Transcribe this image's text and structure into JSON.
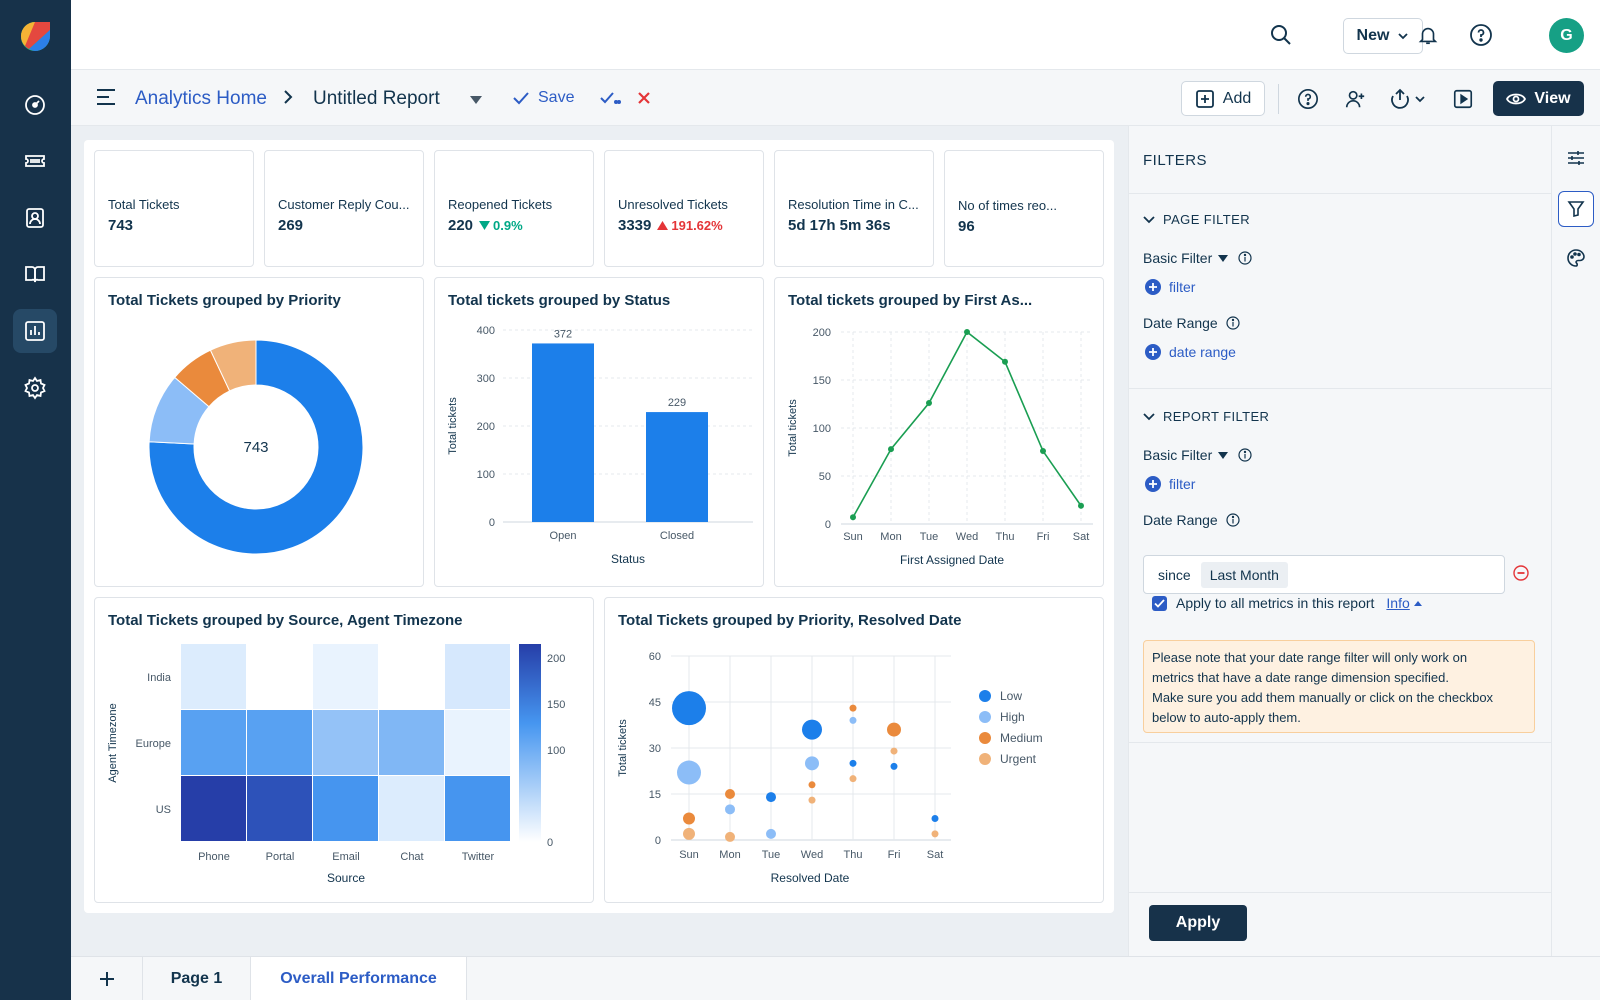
{
  "topbar": {
    "new_label": "New",
    "avatar_initial": "G"
  },
  "breadcrumb": {
    "home": "Analytics Home",
    "title": "Untitled Report"
  },
  "toolbar": {
    "save_label": "Save",
    "add_label": "Add",
    "view_label": "View"
  },
  "metrics": [
    {
      "label": "Total Tickets",
      "value": "743",
      "delta": "",
      "trend": ""
    },
    {
      "label": "Customer Reply Cou...",
      "value": "269",
      "delta": "",
      "trend": ""
    },
    {
      "label": "Reopened Tickets",
      "value": "220",
      "delta": "0.9%",
      "trend": "down"
    },
    {
      "label": "Unresolved Tickets",
      "value": "3339",
      "delta": "191.62%",
      "trend": "up"
    },
    {
      "label": "Resolution Time in C...",
      "value": "5d 17h 5m 36s",
      "delta": "",
      "trend": ""
    },
    {
      "label": "No of times reo...",
      "value": "96",
      "delta": "",
      "trend": ""
    }
  ],
  "charts": {
    "priority": {
      "title": "Total Tickets grouped by Priority"
    },
    "status": {
      "title": "Total tickets grouped by Status"
    },
    "first_assigned": {
      "title": "Total tickets grouped by First As..."
    },
    "source": {
      "title": "Total Tickets grouped by Source, Agent Timezone"
    },
    "resolved": {
      "title": "Total Tickets grouped by Priority, Resolved Date"
    }
  },
  "chart_data": [
    {
      "type": "pie",
      "title": "Total Tickets grouped by Priority",
      "center_label": "743",
      "categories": [
        "Low",
        "High",
        "Medium",
        "Urgent"
      ],
      "values": [
        563,
        78,
        50,
        52
      ],
      "colors": [
        "#1c7fea",
        "#8cbdf7",
        "#ea8a3c",
        "#f0b279"
      ]
    },
    {
      "type": "bar",
      "title": "Total tickets grouped by Status",
      "categories": [
        "Open",
        "Closed"
      ],
      "values": [
        372,
        229
      ],
      "xlabel": "Status",
      "ylabel": "Total tickets",
      "ylim": [
        0,
        400
      ],
      "yticks": [
        0,
        100,
        200,
        300,
        400
      ],
      "grid": true,
      "color": "#1c7fea"
    },
    {
      "type": "line",
      "title": "Total tickets grouped by First As...",
      "categories": [
        "Sun",
        "Mon",
        "Tue",
        "Wed",
        "Thu",
        "Fri",
        "Sat"
      ],
      "values": [
        7,
        78,
        126,
        200,
        169,
        76,
        19
      ],
      "xlabel": "First Assigned Date",
      "ylabel": "Total tickets",
      "ylim": [
        0,
        200
      ],
      "yticks": [
        0,
        50,
        100,
        150,
        200
      ],
      "grid": true,
      "color": "#1a9e52"
    },
    {
      "type": "heatmap",
      "title": "Total Tickets grouped by Source, Agent Timezone",
      "x": [
        "Phone",
        "Portal",
        "Email",
        "Chat",
        "Twitter"
      ],
      "y": [
        "India",
        "Europe",
        "US"
      ],
      "values": [
        [
          15,
          0,
          5,
          0,
          20
        ],
        [
          115,
          115,
          70,
          85,
          5
        ],
        [
          215,
          195,
          130,
          15,
          130
        ]
      ],
      "xlabel": "Source",
      "ylabel": "Agent Timezone",
      "colorbar_ticks": [
        0,
        100,
        150,
        200
      ],
      "color_range": [
        0,
        215
      ]
    },
    {
      "type": "scatter",
      "title": "Total Tickets grouped by Priority, Resolved Date",
      "categories": [
        "Sun",
        "Mon",
        "Tue",
        "Wed",
        "Thu",
        "Fri",
        "Sat"
      ],
      "xlabel": "Resolved Date",
      "ylabel": "Total tickets",
      "ylim": [
        0,
        60
      ],
      "yticks": [
        0,
        15,
        30,
        45,
        60
      ],
      "legend": "right",
      "series": [
        {
          "name": "Low",
          "color": "#1c7fea",
          "points": [
            [
              0,
              43,
              17
            ],
            [
              2,
              14,
              5
            ],
            [
              3,
              36,
              10
            ],
            [
              4,
              25,
              3.5
            ],
            [
              5,
              24,
              3.5
            ],
            [
              6,
              7,
              3.5
            ]
          ]
        },
        {
          "name": "High",
          "color": "#8cbdf7",
          "points": [
            [
              0,
              22,
              12
            ],
            [
              1,
              10,
              5
            ],
            [
              2,
              2,
              5
            ],
            [
              3,
              25,
              7
            ],
            [
              4,
              39,
              3.5
            ]
          ]
        },
        {
          "name": "Medium",
          "color": "#ea8a3c",
          "points": [
            [
              0,
              7,
              6
            ],
            [
              1,
              15,
              5
            ],
            [
              3,
              18,
              3.5
            ],
            [
              4,
              43,
              3.5
            ],
            [
              5,
              36,
              7
            ]
          ]
        },
        {
          "name": "Urgent",
          "color": "#f0b279",
          "points": [
            [
              0,
              2,
              6
            ],
            [
              1,
              1,
              5
            ],
            [
              3,
              13,
              3.5
            ],
            [
              4,
              20,
              3.5
            ],
            [
              5,
              29,
              3.5
            ],
            [
              6,
              2,
              3.5
            ]
          ]
        }
      ]
    }
  ],
  "filters": {
    "title": "FILTERS",
    "page_filter": "PAGE FILTER",
    "report_filter": "REPORT FILTER",
    "basic_filter": "Basic Filter",
    "filter_link": "filter",
    "date_range": "Date Range",
    "date_range_link": "date range",
    "since_label": "since",
    "since_value": "Last Month",
    "apply_all": "Apply to all metrics in this report",
    "info": "Info",
    "note": "Please note that your date range filter will only work on metrics that have a date range dimension specified. Make sure you add them manually or click on the checkbox below to auto-apply them.",
    "note_line1": "Please note that your date range filter will only work on",
    "note_line2": "metrics that have a date range dimension specified.",
    "note_line3": "Make sure you add them manually or click on the checkbox",
    "note_line4": "below to auto-apply them.",
    "apply_button": "Apply"
  },
  "tabs": {
    "page1": "Page 1",
    "active": "Overall Performance"
  }
}
